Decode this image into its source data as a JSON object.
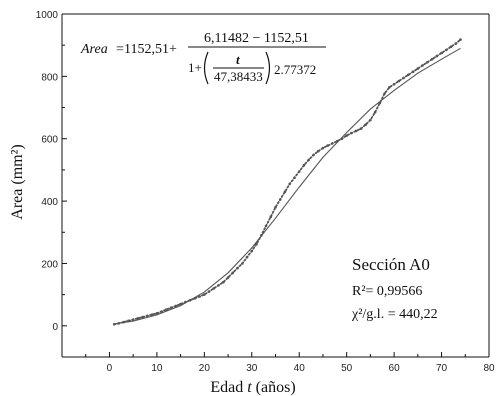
{
  "chart_data": {
    "type": "scatter",
    "title": "",
    "xlabel_pre": "Edad ",
    "xlabel_var": "t",
    "xlabel_post": " (años)",
    "ylabel": "Area (mm²)",
    "xlim": [
      -10,
      80
    ],
    "ylim": [
      -100,
      1000
    ],
    "xticks": [
      0,
      10,
      20,
      30,
      40,
      50,
      60,
      70,
      80
    ],
    "yticks": [
      0,
      200,
      400,
      600,
      800,
      1000
    ],
    "xtick_labels": [
      "0",
      "10",
      "20",
      "30",
      "40",
      "50",
      "60",
      "70",
      "80"
    ],
    "ytick_labels": [
      "0",
      "200",
      "400",
      "600",
      "800",
      "1000"
    ],
    "grid": false,
    "series": [
      {
        "style": "dotted",
        "color": "#555555",
        "x": [
          1,
          2,
          3,
          4,
          5,
          6,
          7,
          8,
          9,
          10,
          11,
          12,
          13,
          14,
          15,
          16,
          17,
          18,
          19,
          20,
          21,
          22,
          23,
          24,
          25,
          26,
          27,
          28,
          29,
          30,
          31,
          32,
          33,
          34,
          35,
          36,
          37,
          38,
          39,
          40,
          41,
          42,
          43,
          44,
          45,
          46,
          47,
          48,
          49,
          50,
          51,
          52,
          53,
          54,
          55,
          56,
          57,
          58,
          59,
          60,
          61,
          62,
          63,
          64,
          65,
          66,
          67,
          68,
          69,
          70,
          71,
          72,
          73,
          74
        ],
        "y": [
          5,
          8,
          12,
          16,
          20,
          24,
          28,
          32,
          36,
          40,
          46,
          52,
          58,
          64,
          70,
          76,
          82,
          88,
          94,
          100,
          110,
          120,
          130,
          140,
          155,
          170,
          185,
          200,
          220,
          240,
          262,
          290,
          320,
          350,
          380,
          405,
          430,
          455,
          475,
          495,
          515,
          532,
          548,
          560,
          570,
          578,
          585,
          592,
          600,
          610,
          618,
          625,
          632,
          645,
          660,
          685,
          715,
          745,
          765,
          775,
          785,
          795,
          805,
          815,
          825,
          835,
          845,
          855,
          865,
          875,
          885,
          895,
          905,
          918
        ]
      },
      {
        "style": "solid",
        "color": "#555555",
        "x": [
          1,
          5,
          10,
          15,
          20,
          25,
          30,
          35,
          40,
          45,
          50,
          55,
          60,
          65,
          70,
          74
        ],
        "y": [
          6,
          15,
          35,
          65,
          108,
          170,
          250,
          345,
          445,
          540,
          620,
          695,
          755,
          810,
          855,
          890
        ]
      }
    ],
    "equation": {
      "lhs": "Area",
      "eq": "=",
      "const": "1152,51+",
      "numerator": "6,11482 − 1152,51",
      "den_one": "1+",
      "den_var": "t",
      "den_div": "47,38433",
      "exponent": "2.77372"
    },
    "annotation": {
      "title": "Sección A0",
      "r2": "R²=  0,99566",
      "chi2": "χ²/g.l. = 440,22"
    }
  }
}
